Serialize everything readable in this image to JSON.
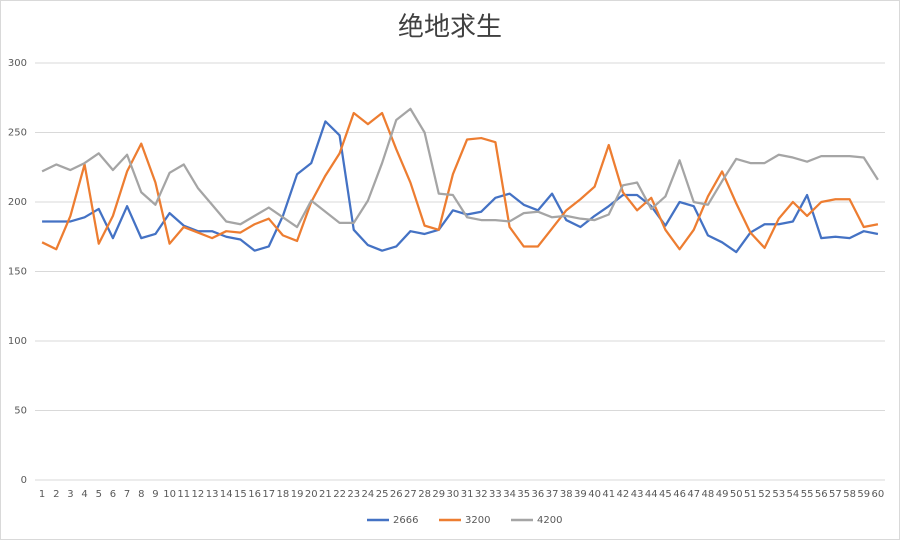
{
  "chart_data": {
    "type": "line",
    "title": "绝地求生",
    "categories": [
      "1",
      "2",
      "3",
      "4",
      "5",
      "6",
      "7",
      "8",
      "9",
      "10",
      "11",
      "12",
      "13",
      "14",
      "15",
      "16",
      "17",
      "18",
      "19",
      "20",
      "21",
      "22",
      "23",
      "24",
      "25",
      "26",
      "27",
      "28",
      "29",
      "30",
      "31",
      "32",
      "33",
      "34",
      "35",
      "36",
      "37",
      "38",
      "39",
      "40",
      "41",
      "42",
      "43",
      "44",
      "45",
      "46",
      "47",
      "48",
      "49",
      "50",
      "51",
      "52",
      "53",
      "54",
      "55",
      "56",
      "57",
      "58",
      "59",
      "60"
    ],
    "series": [
      {
        "name": "2666",
        "color": "#4472c4",
        "values": [
          186,
          186,
          186,
          189,
          195,
          174,
          197,
          174,
          177,
          192,
          183,
          179,
          179,
          175,
          173,
          165,
          168,
          190,
          220,
          228,
          258,
          248,
          180,
          169,
          165,
          168,
          179,
          177,
          180,
          194,
          191,
          193,
          203,
          206,
          198,
          194,
          206,
          187,
          182,
          190,
          197,
          205,
          205,
          197,
          183,
          200,
          197,
          176,
          171,
          164,
          178,
          184,
          184,
          186,
          205,
          174,
          175,
          174,
          179,
          177
        ]
      },
      {
        "name": "3200",
        "color": "#ed7d31",
        "values": [
          171,
          166,
          190,
          227,
          170,
          190,
          222,
          242,
          214,
          170,
          182,
          178,
          174,
          179,
          178,
          184,
          188,
          176,
          172,
          200,
          219,
          235,
          264,
          256,
          264,
          238,
          214,
          183,
          180,
          220,
          245,
          246,
          243,
          182,
          168,
          168,
          181,
          194,
          202,
          211,
          241,
          207,
          194,
          203,
          180,
          166,
          180,
          204,
          222,
          199,
          178,
          167,
          188,
          200,
          190,
          200,
          202,
          202,
          182,
          184
        ]
      },
      {
        "name": "4200",
        "color": "#a5a5a5",
        "values": [
          222,
          227,
          223,
          228,
          235,
          223,
          234,
          207,
          198,
          221,
          227,
          210,
          198,
          186,
          184,
          190,
          196,
          189,
          182,
          201,
          193,
          185,
          185,
          201,
          228,
          259,
          267,
          250,
          206,
          205,
          189,
          187,
          187,
          186,
          192,
          193,
          189,
          190,
          188,
          187,
          191,
          212,
          214,
          195,
          204,
          230,
          200,
          198,
          215,
          231,
          228,
          228,
          234,
          232,
          229,
          233,
          233,
          233,
          232,
          216
        ]
      }
    ],
    "ylim": [
      0,
      300
    ],
    "yticks": [
      0,
      50,
      100,
      150,
      200,
      250,
      300
    ],
    "grid": true
  }
}
